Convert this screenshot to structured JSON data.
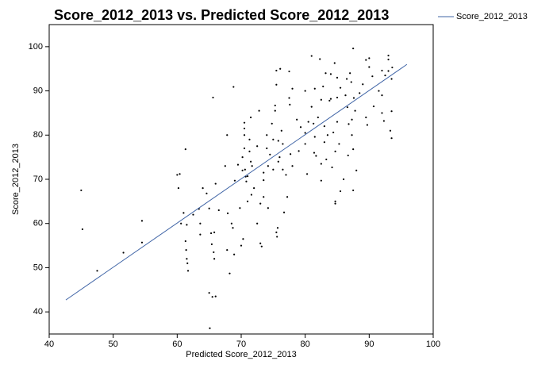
{
  "chart_data": {
    "type": "scatter",
    "title": "Score_2012_2013 vs. Predicted Score_2012_2013",
    "x_label": "Predicted Score_2012_2013",
    "y_label": "Score_2012_2013",
    "xlim": [
      40,
      100
    ],
    "ylim": [
      35,
      105
    ],
    "xticks": [
      40,
      50,
      60,
      70,
      80,
      90,
      100
    ],
    "yticks": [
      40,
      50,
      60,
      70,
      80,
      90,
      100
    ],
    "series": [
      {
        "name": "Score_2012_2013",
        "color": "#3f64a6",
        "x": [
          42.6,
          95.9
        ],
        "values": [
          42.7,
          96
        ]
      }
    ],
    "points": {
      "color": "#000000",
      "x": [
        45,
        45.2,
        47.5,
        51.6,
        54.5,
        54.5,
        60,
        60.2,
        60.4,
        60.6,
        61,
        61.3,
        61.3,
        61.4,
        61.5,
        61.6,
        61.7,
        61.5,
        62.5,
        63.4,
        63.6,
        63.6,
        64.6,
        65,
        65,
        65.1,
        65.3,
        65.4,
        65.5,
        65.6,
        65.7,
        65.8,
        65.8,
        66,
        66.5,
        67.5,
        67.8,
        67.8,
        67.9,
        68.2,
        68.5,
        68.7,
        68.8,
        68.9,
        69.5,
        69.8,
        70,
        70.2,
        70.2,
        70.5,
        70.5,
        70.5,
        70.5,
        70.6,
        70.7,
        70.8,
        70.3,
        71,
        71.3,
        71.3,
        71.5,
        71.5,
        71.6,
        71.7,
        72,
        72.5,
        72.8,
        73,
        73,
        73.2,
        73.5,
        73.5,
        73.5,
        74,
        74,
        74.2,
        74.2,
        74.5,
        74.8,
        75,
        75,
        75.3,
        75.3,
        75.5,
        75.5,
        75.5,
        75.6,
        75.7,
        75.8,
        75.8,
        76,
        76.1,
        76.3,
        76.5,
        76.5,
        76.7,
        77,
        77.2,
        77.5,
        77.5,
        77.6,
        77.7,
        78,
        78,
        78.7,
        79,
        79.3,
        80,
        80.3,
        80.5,
        81,
        81,
        81.3,
        81.4,
        81.5,
        81.5,
        81.7,
        82,
        82.3,
        82.5,
        82.5,
        82.5,
        82.8,
        83,
        83,
        83.2,
        83.3,
        83.5,
        83.8,
        84,
        84,
        84.2,
        84.4,
        84.6,
        84.7,
        84.7,
        84.7,
        85,
        85,
        85,
        85.3,
        85.5,
        85.5,
        86.3,
        86.5,
        86.6,
        86.7,
        86.8,
        87,
        87.2,
        87.3,
        87.3,
        87.5,
        87.5,
        87.5,
        87.6,
        87.8,
        88.5,
        89,
        89.5,
        89.5,
        89.7,
        90,
        90,
        90.5,
        90.7,
        91.5,
        92,
        92,
        92,
        92.3,
        92.5,
        93,
        93,
        93,
        93.3,
        93.5,
        93.5,
        93.5,
        93.6,
        86,
        88,
        64,
        66,
        69,
        71,
        72.5,
        80,
        80
      ],
      "values": [
        67.5,
        58.7,
        49.3,
        53.4,
        60.6,
        55.7,
        71,
        68,
        71.2,
        60,
        62.4,
        76.8,
        56,
        54,
        52,
        51,
        49.3,
        59.7,
        62,
        63.3,
        60,
        57.5,
        66.8,
        63.4,
        44.3,
        36.3,
        57.8,
        55.3,
        43.4,
        88.5,
        53.5,
        52,
        58,
        43.5,
        63,
        73,
        80,
        54,
        62.3,
        48.7,
        60,
        59,
        90.9,
        53,
        73.3,
        63.5,
        55,
        75,
        72,
        82.8,
        81.5,
        80,
        77,
        72.2,
        70.6,
        69.5,
        56.5,
        65,
        79,
        76.3,
        84,
        74,
        66.5,
        73,
        68,
        60,
        85.5,
        64.5,
        55.5,
        54.8,
        66,
        69.8,
        71.5,
        80,
        77,
        63.5,
        73,
        75.6,
        82.6,
        79,
        72.2,
        86.7,
        85.5,
        94.6,
        91.4,
        58,
        57,
        59,
        78.7,
        74,
        75,
        95,
        81,
        78,
        72.2,
        62.5,
        71,
        66,
        88.4,
        94.4,
        86.9,
        75.7,
        90.5,
        73,
        83.5,
        76.4,
        81.8,
        90,
        71.2,
        83,
        97.9,
        86.4,
        82.6,
        76,
        90.5,
        79.6,
        75.3,
        84,
        97.2,
        88,
        73.5,
        69.7,
        91,
        82,
        78.4,
        94,
        74.5,
        80,
        87.8,
        93.8,
        88.2,
        72.7,
        80.6,
        96.3,
        76.3,
        65,
        64.5,
        93,
        88.5,
        83,
        78,
        90.7,
        67.3,
        89,
        92.7,
        86.3,
        75.4,
        82.5,
        94,
        92,
        83.5,
        80,
        99.6,
        76.8,
        67.5,
        88.4,
        85.5,
        89.5,
        91.5,
        97,
        84,
        82.3,
        97.4,
        95.4,
        93.3,
        86.5,
        90,
        94.6,
        89,
        85,
        83.2,
        93.5,
        97.1,
        98,
        94.5,
        81,
        92.7,
        85.4,
        79.3,
        95.3,
        70,
        72,
        68,
        69,
        69.7,
        70.7,
        77.5,
        78,
        80.5
      ]
    },
    "legend": "top-right"
  }
}
